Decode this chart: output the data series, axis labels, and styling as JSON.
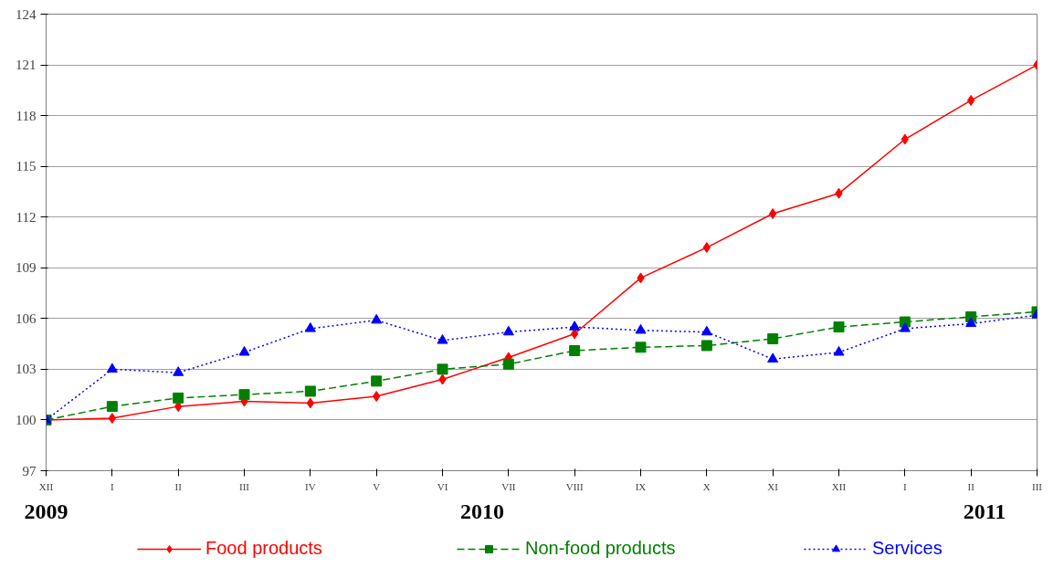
{
  "chart_data": {
    "type": "line",
    "categories": [
      "XII",
      "I",
      "II",
      "III",
      "IV",
      "V",
      "VI",
      "VII",
      "VIII",
      "IX",
      "X",
      "XI",
      "XII",
      "I",
      "II",
      "III"
    ],
    "series": [
      {
        "name": "Food products",
        "color": "#ff0000",
        "marker": "diamond",
        "line_style": "solid",
        "values": [
          100,
          100.1,
          100.8,
          101.1,
          101.0,
          101.4,
          102.4,
          103.7,
          105.1,
          108.4,
          110.2,
          112.2,
          113.4,
          116.6,
          118.9,
          121.0
        ]
      },
      {
        "name": "Non-food products",
        "color": "#008000",
        "marker": "square",
        "line_style": "dashed",
        "values": [
          100,
          100.8,
          101.3,
          101.5,
          101.7,
          102.3,
          103.0,
          103.3,
          104.1,
          104.3,
          104.4,
          104.8,
          105.5,
          105.8,
          106.1,
          106.4
        ]
      },
      {
        "name": "Services",
        "color": "#0000ff",
        "marker": "triangle",
        "line_style": "dotted",
        "values": [
          100,
          103.0,
          102.8,
          104.0,
          105.4,
          105.9,
          104.7,
          105.2,
          105.5,
          105.3,
          105.2,
          103.6,
          104.0,
          105.4,
          105.7,
          106.2
        ]
      }
    ],
    "ylim": [
      97,
      124
    ],
    "yticks": [
      97,
      100,
      103,
      106,
      109,
      112,
      115,
      118,
      121,
      124
    ],
    "grid": "y",
    "legend": "bottom",
    "annotations": [
      "2009",
      "2010",
      "2011"
    ]
  }
}
